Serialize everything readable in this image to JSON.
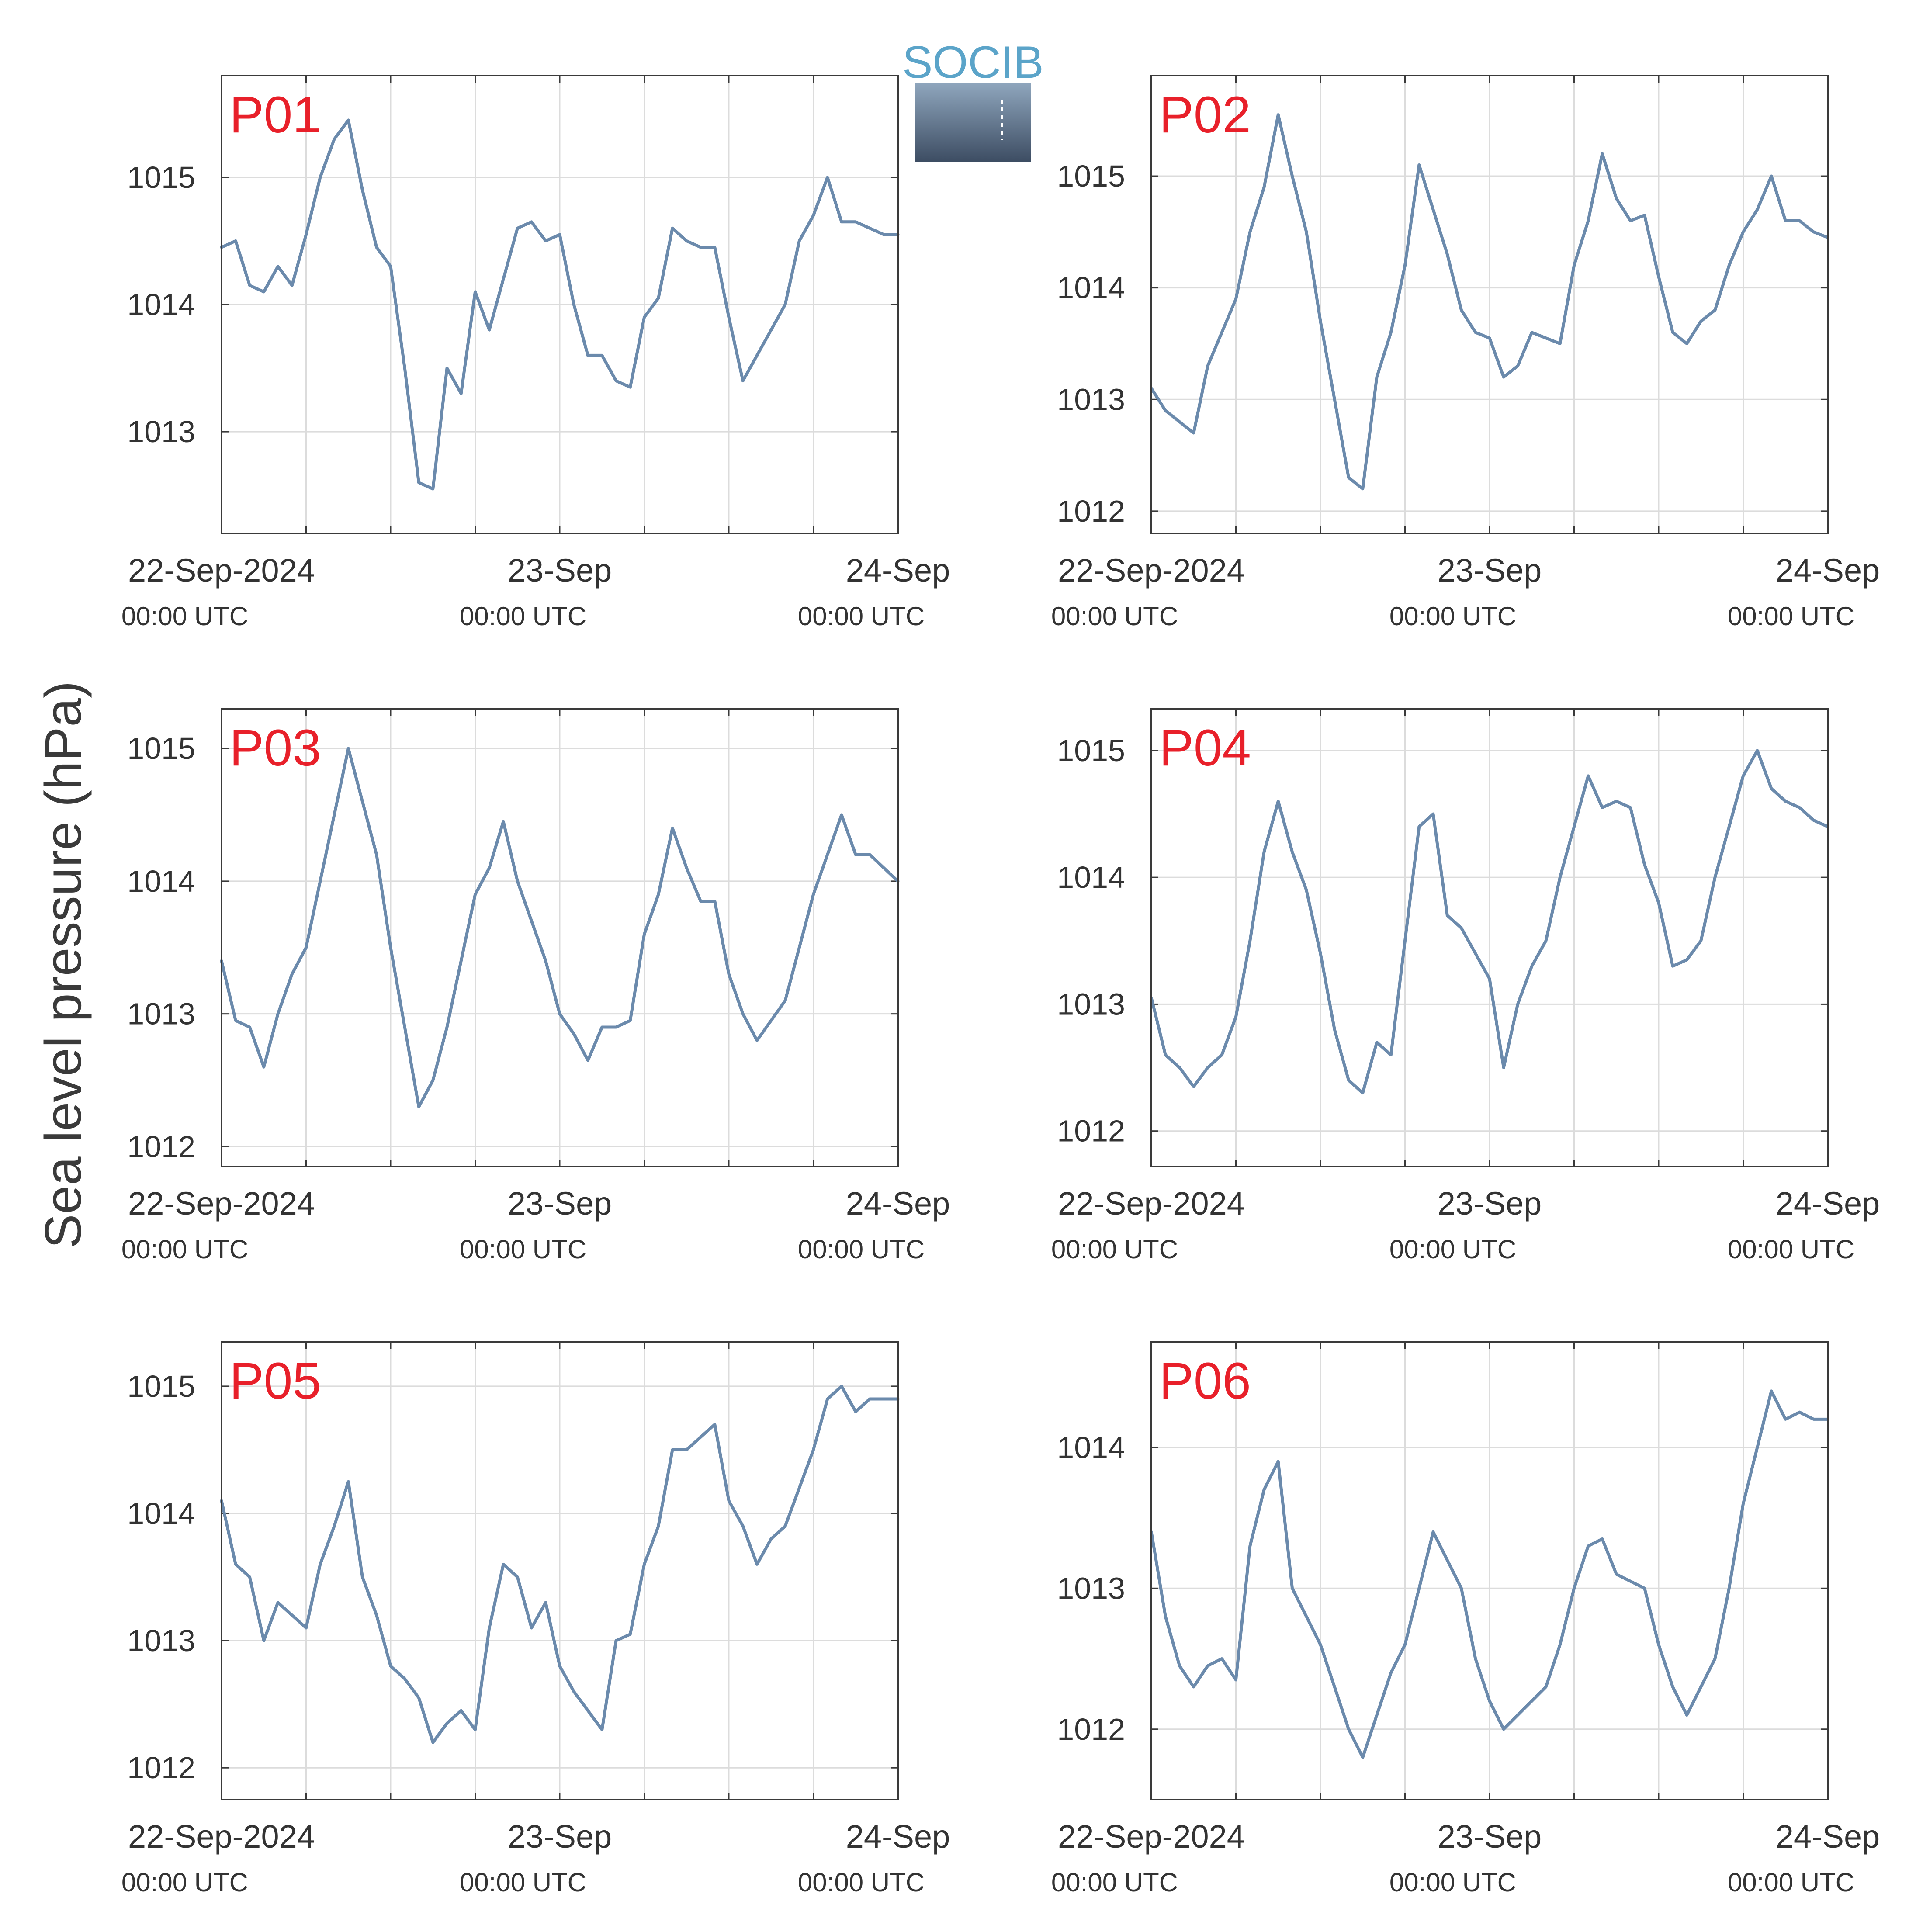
{
  "figure": {
    "ylabel": "Sea level pressure (hPa)",
    "logo_text": "SOCIB",
    "colors": {
      "line": "#6b8aac",
      "panel_label": "#e8202a",
      "grid": "#dcdcdc",
      "axis": "#3a3a3a",
      "text": "#333333",
      "logo_text": "#5ba4c9",
      "logo_top": "#8fa6bd",
      "logo_bottom": "#3d4d63"
    }
  },
  "chart_data": [
    {
      "type": "line",
      "panel": "P01",
      "x_ticks": [
        {
          "label": "22-Sep-2024",
          "sublabel": "00:00 UTC"
        },
        {
          "label": "23-Sep",
          "sublabel": "00:00 UTC"
        },
        {
          "label": "24-Sep",
          "sublabel": "00:00 UTC"
        }
      ],
      "xlim_hours": [
        0,
        48
      ],
      "ylim": [
        1012.2,
        1015.8
      ],
      "yticks": [
        1013,
        1014,
        1015
      ],
      "grid": true,
      "series": [
        {
          "x_hours": [
            0,
            1,
            2,
            3,
            4,
            5,
            6,
            7,
            8,
            9,
            10,
            11,
            12,
            13,
            14,
            15,
            16,
            17,
            18,
            19,
            20,
            21,
            22,
            23,
            24,
            25,
            26,
            27,
            28,
            29,
            30,
            31,
            32,
            33,
            34,
            35,
            36,
            37,
            38,
            39,
            40,
            41,
            42,
            43,
            44,
            45,
            46,
            47,
            48
          ],
          "values": [
            1014.45,
            1014.5,
            1014.15,
            1014.1,
            1014.3,
            1014.15,
            1014.55,
            1015.0,
            1015.3,
            1015.45,
            1014.9,
            1014.45,
            1014.3,
            1013.5,
            1012.6,
            1012.55,
            1013.5,
            1013.3,
            1014.1,
            1013.8,
            1014.2,
            1014.6,
            1014.65,
            1014.5,
            1014.55,
            1014.0,
            1013.6,
            1013.6,
            1013.4,
            1013.35,
            1013.9,
            1014.05,
            1014.6,
            1014.5,
            1014.45,
            1014.45,
            1013.9,
            1013.4,
            1013.6,
            1013.8,
            1014.0,
            1014.5,
            1014.7,
            1015.0,
            1014.65,
            1014.65,
            1014.6,
            1014.55,
            1014.55
          ]
        }
      ]
    },
    {
      "type": "line",
      "panel": "P02",
      "x_ticks": [
        {
          "label": "22-Sep-2024",
          "sublabel": "00:00 UTC"
        },
        {
          "label": "23-Sep",
          "sublabel": "00:00 UTC"
        },
        {
          "label": "24-Sep",
          "sublabel": "00:00 UTC"
        }
      ],
      "xlim_hours": [
        0,
        48
      ],
      "ylim": [
        1011.8,
        1015.9
      ],
      "yticks": [
        1012,
        1013,
        1014,
        1015
      ],
      "grid": true,
      "series": [
        {
          "x_hours": [
            0,
            1,
            2,
            3,
            4,
            5,
            6,
            7,
            8,
            9,
            10,
            11,
            12,
            13,
            14,
            15,
            16,
            17,
            18,
            19,
            20,
            21,
            22,
            23,
            24,
            25,
            26,
            27,
            28,
            29,
            30,
            31,
            32,
            33,
            34,
            35,
            36,
            37,
            38,
            39,
            40,
            41,
            42,
            43,
            44,
            45,
            46,
            47,
            48
          ],
          "values": [
            1013.1,
            1012.9,
            1012.8,
            1012.7,
            1013.3,
            1013.6,
            1013.9,
            1014.5,
            1014.9,
            1015.55,
            1015.0,
            1014.5,
            1013.7,
            1013.0,
            1012.3,
            1012.2,
            1013.2,
            1013.6,
            1014.2,
            1015.1,
            1014.7,
            1014.3,
            1013.8,
            1013.6,
            1013.55,
            1013.2,
            1013.3,
            1013.6,
            1013.55,
            1013.5,
            1014.2,
            1014.6,
            1015.2,
            1014.8,
            1014.6,
            1014.65,
            1014.1,
            1013.6,
            1013.5,
            1013.7,
            1013.8,
            1014.2,
            1014.5,
            1014.7,
            1015.0,
            1014.6,
            1014.6,
            1014.5,
            1014.45
          ]
        }
      ]
    },
    {
      "type": "line",
      "panel": "P03",
      "x_ticks": [
        {
          "label": "22-Sep-2024",
          "sublabel": "00:00 UTC"
        },
        {
          "label": "23-Sep",
          "sublabel": "00:00 UTC"
        },
        {
          "label": "24-Sep",
          "sublabel": "00:00 UTC"
        }
      ],
      "xlim_hours": [
        0,
        48
      ],
      "ylim": [
        1011.85,
        1015.3
      ],
      "yticks": [
        1012,
        1013,
        1014,
        1015
      ],
      "grid": true,
      "series": [
        {
          "x_hours": [
            0,
            1,
            2,
            3,
            4,
            5,
            6,
            7,
            8,
            9,
            10,
            11,
            12,
            13,
            14,
            15,
            16,
            17,
            18,
            19,
            20,
            21,
            22,
            23,
            24,
            25,
            26,
            27,
            28,
            29,
            30,
            31,
            32,
            33,
            34,
            35,
            36,
            37,
            38,
            39,
            40,
            41,
            42,
            43,
            44,
            45,
            46,
            47,
            48
          ],
          "values": [
            1013.4,
            1012.95,
            1012.9,
            1012.6,
            1013.0,
            1013.3,
            1013.5,
            1014.0,
            1014.5,
            1015.0,
            1014.6,
            1014.2,
            1013.5,
            1012.9,
            1012.3,
            1012.5,
            1012.9,
            1013.4,
            1013.9,
            1014.1,
            1014.45,
            1014.0,
            1013.7,
            1013.4,
            1013.0,
            1012.85,
            1012.65,
            1012.9,
            1012.9,
            1012.95,
            1013.6,
            1013.9,
            1014.4,
            1014.1,
            1013.85,
            1013.85,
            1013.3,
            1013.0,
            1012.8,
            1012.95,
            1013.1,
            1013.5,
            1013.9,
            1014.2,
            1014.5,
            1014.2,
            1014.2,
            1014.1,
            1014.0
          ]
        }
      ]
    },
    {
      "type": "line",
      "panel": "P04",
      "x_ticks": [
        {
          "label": "22-Sep-2024",
          "sublabel": "00:00 UTC"
        },
        {
          "label": "23-Sep",
          "sublabel": "00:00 UTC"
        },
        {
          "label": "24-Sep",
          "sublabel": "00:00 UTC"
        }
      ],
      "xlim_hours": [
        0,
        48
      ],
      "ylim": [
        1011.72,
        1015.33
      ],
      "yticks": [
        1012,
        1013,
        1014,
        1015
      ],
      "grid": true,
      "series": [
        {
          "x_hours": [
            0,
            1,
            2,
            3,
            4,
            5,
            6,
            7,
            8,
            9,
            10,
            11,
            12,
            13,
            14,
            15,
            16,
            17,
            18,
            19,
            20,
            21,
            22,
            23,
            24,
            25,
            26,
            27,
            28,
            29,
            30,
            31,
            32,
            33,
            34,
            35,
            36,
            37,
            38,
            39,
            40,
            41,
            42,
            43,
            44,
            45,
            46,
            47,
            48
          ],
          "values": [
            1013.05,
            1012.6,
            1012.5,
            1012.35,
            1012.5,
            1012.6,
            1012.9,
            1013.5,
            1014.2,
            1014.6,
            1014.2,
            1013.9,
            1013.4,
            1012.8,
            1012.4,
            1012.3,
            1012.7,
            1012.6,
            1013.5,
            1014.4,
            1014.5,
            1013.7,
            1013.6,
            1013.4,
            1013.2,
            1012.5,
            1013.0,
            1013.3,
            1013.5,
            1014.0,
            1014.4,
            1014.8,
            1014.55,
            1014.6,
            1014.55,
            1014.1,
            1013.8,
            1013.3,
            1013.35,
            1013.5,
            1014.0,
            1014.4,
            1014.8,
            1015.0,
            1014.7,
            1014.6,
            1014.55,
            1014.45,
            1014.4
          ]
        }
      ]
    },
    {
      "type": "line",
      "panel": "P05",
      "x_ticks": [
        {
          "label": "22-Sep-2024",
          "sublabel": "00:00 UTC"
        },
        {
          "label": "23-Sep",
          "sublabel": "00:00 UTC"
        },
        {
          "label": "24-Sep",
          "sublabel": "00:00 UTC"
        }
      ],
      "xlim_hours": [
        0,
        48
      ],
      "ylim": [
        1011.75,
        1015.35
      ],
      "yticks": [
        1012,
        1013,
        1014,
        1015
      ],
      "grid": true,
      "series": [
        {
          "x_hours": [
            0,
            1,
            2,
            3,
            4,
            5,
            6,
            7,
            8,
            9,
            10,
            11,
            12,
            13,
            14,
            15,
            16,
            17,
            18,
            19,
            20,
            21,
            22,
            23,
            24,
            25,
            26,
            27,
            28,
            29,
            30,
            31,
            32,
            33,
            34,
            35,
            36,
            37,
            38,
            39,
            40,
            41,
            42,
            43,
            44,
            45,
            46,
            47,
            48
          ],
          "values": [
            1014.1,
            1013.6,
            1013.5,
            1013.0,
            1013.3,
            1013.2,
            1013.1,
            1013.6,
            1013.9,
            1014.25,
            1013.5,
            1013.2,
            1012.8,
            1012.7,
            1012.55,
            1012.2,
            1012.35,
            1012.45,
            1012.3,
            1013.1,
            1013.6,
            1013.5,
            1013.1,
            1013.3,
            1012.8,
            1012.6,
            1012.45,
            1012.3,
            1013.0,
            1013.05,
            1013.6,
            1013.9,
            1014.5,
            1014.5,
            1014.6,
            1014.7,
            1014.1,
            1013.9,
            1013.6,
            1013.8,
            1013.9,
            1014.2,
            1014.5,
            1014.9,
            1015.0,
            1014.8,
            1014.9,
            1014.9,
            1014.9
          ]
        }
      ]
    },
    {
      "type": "line",
      "panel": "P06",
      "x_ticks": [
        {
          "label": "22-Sep-2024",
          "sublabel": "00:00 UTC"
        },
        {
          "label": "23-Sep",
          "sublabel": "00:00 UTC"
        },
        {
          "label": "24-Sep",
          "sublabel": "00:00 UTC"
        }
      ],
      "xlim_hours": [
        0,
        48
      ],
      "ylim": [
        1011.5,
        1014.75
      ],
      "yticks": [
        1012,
        1013,
        1014
      ],
      "grid": true,
      "series": [
        {
          "x_hours": [
            0,
            1,
            2,
            3,
            4,
            5,
            6,
            7,
            8,
            9,
            10,
            11,
            12,
            13,
            14,
            15,
            16,
            17,
            18,
            19,
            20,
            21,
            22,
            23,
            24,
            25,
            26,
            27,
            28,
            29,
            30,
            31,
            32,
            33,
            34,
            35,
            36,
            37,
            38,
            39,
            40,
            41,
            42,
            43,
            44,
            45,
            46,
            47,
            48
          ],
          "values": [
            1013.4,
            1012.8,
            1012.45,
            1012.3,
            1012.45,
            1012.5,
            1012.35,
            1013.3,
            1013.7,
            1013.9,
            1013.0,
            1012.8,
            1012.6,
            1012.3,
            1012.0,
            1011.8,
            1012.1,
            1012.4,
            1012.6,
            1013.0,
            1013.4,
            1013.2,
            1013.0,
            1012.5,
            1012.2,
            1012.0,
            1012.1,
            1012.2,
            1012.3,
            1012.6,
            1013.0,
            1013.3,
            1013.35,
            1013.1,
            1013.05,
            1013.0,
            1012.6,
            1012.3,
            1012.1,
            1012.3,
            1012.5,
            1013.0,
            1013.6,
            1014.0,
            1014.4,
            1014.2,
            1014.25,
            1014.2,
            1014.2
          ]
        }
      ]
    }
  ]
}
